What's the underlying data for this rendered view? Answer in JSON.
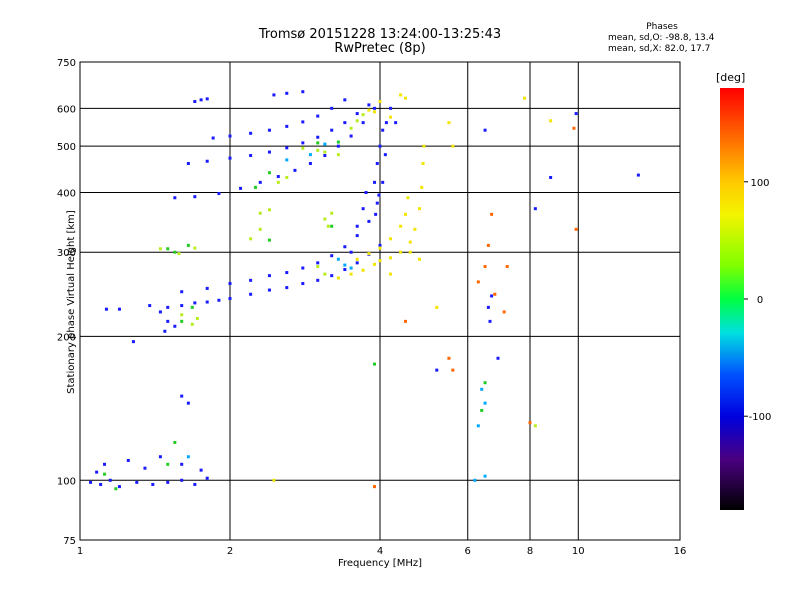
{
  "title_line1": "Tromsø 20151228 13:24:00-13:25:43",
  "title_line2": "RwPretec (8p)",
  "stats": {
    "heading": "Phases",
    "line_o": "mean, sd,O: -98.8, 13.4",
    "line_x": "mean, sd,X:  82.0, 17.7"
  },
  "colorbar": {
    "unit_label": "[deg]",
    "ticks": [
      "100",
      "0",
      "-100"
    ],
    "tick_values": [
      100,
      0,
      -100
    ],
    "range": [
      -180,
      180
    ],
    "colormap": "rainbow (black-purple-blue-cyan-green-yellow-orange-red)"
  },
  "chart_data": {
    "type": "scatter",
    "title": "Tromsø 20151228 13:24:00-13:25:43",
    "subtitle": "RwPretec (8p)",
    "xlabel": "Frequency [MHz]",
    "ylabel": "Stationary phase Virtual Height [km]",
    "x_scale": "log",
    "y_scale": "log",
    "xlim": [
      1,
      16
    ],
    "ylim": [
      75,
      750
    ],
    "x_ticks": [
      "1",
      "2",
      "4",
      "6",
      "8",
      "10",
      "16"
    ],
    "x_tick_values": [
      1,
      2,
      4,
      6,
      8,
      10,
      16
    ],
    "y_ticks": [
      "75",
      "100",
      "200",
      "300",
      "400",
      "500",
      "600",
      "750"
    ],
    "y_tick_values": [
      75,
      100,
      200,
      300,
      400,
      500,
      600,
      750
    ],
    "grid": true,
    "color_meaning": "phase in degrees",
    "series": [
      {
        "color": "#1a1aff",
        "phase": -100,
        "points": [
          [
            1.05,
            99
          ],
          [
            1.1,
            98
          ],
          [
            1.15,
            100
          ],
          [
            1.2,
            97
          ],
          [
            1.3,
            99
          ],
          [
            1.4,
            98
          ],
          [
            1.5,
            99
          ],
          [
            1.6,
            100
          ],
          [
            1.7,
            98
          ],
          [
            1.8,
            101
          ],
          [
            1.08,
            104
          ],
          [
            1.12,
            108
          ],
          [
            1.25,
            110
          ],
          [
            1.35,
            106
          ],
          [
            1.45,
            112
          ],
          [
            1.6,
            108
          ],
          [
            1.75,
            105
          ],
          [
            1.13,
            228
          ],
          [
            1.2,
            228
          ],
          [
            1.38,
            232
          ],
          [
            1.45,
            225
          ],
          [
            1.5,
            230
          ],
          [
            1.6,
            232
          ],
          [
            1.7,
            235
          ],
          [
            1.8,
            236
          ],
          [
            1.9,
            238
          ],
          [
            2.0,
            240
          ],
          [
            2.2,
            245
          ],
          [
            2.4,
            250
          ],
          [
            2.6,
            253
          ],
          [
            2.8,
            258
          ],
          [
            3.0,
            262
          ],
          [
            3.2,
            268
          ],
          [
            3.4,
            276
          ],
          [
            3.6,
            285
          ],
          [
            3.8,
            297
          ],
          [
            4.0,
            310
          ],
          [
            1.5,
            215
          ],
          [
            1.55,
            210
          ],
          [
            1.48,
            205
          ],
          [
            1.6,
            248
          ],
          [
            1.8,
            252
          ],
          [
            2.0,
            258
          ],
          [
            2.2,
            262
          ],
          [
            2.4,
            268
          ],
          [
            2.6,
            272
          ],
          [
            2.8,
            278
          ],
          [
            3.0,
            285
          ],
          [
            3.2,
            295
          ],
          [
            3.4,
            308
          ],
          [
            3.6,
            325
          ],
          [
            3.8,
            348
          ],
          [
            3.95,
            380
          ],
          [
            4.05,
            420
          ],
          [
            4.1,
            480
          ],
          [
            4.12,
            560
          ],
          [
            1.55,
            390
          ],
          [
            1.7,
            392
          ],
          [
            1.9,
            398
          ],
          [
            2.1,
            408
          ],
          [
            2.3,
            420
          ],
          [
            2.5,
            432
          ],
          [
            2.7,
            445
          ],
          [
            2.9,
            460
          ],
          [
            3.1,
            478
          ],
          [
            3.3,
            500
          ],
          [
            3.5,
            525
          ],
          [
            3.7,
            560
          ],
          [
            3.9,
            600
          ],
          [
            1.65,
            460
          ],
          [
            1.8,
            465
          ],
          [
            2.0,
            472
          ],
          [
            2.2,
            478
          ],
          [
            2.4,
            486
          ],
          [
            2.6,
            496
          ],
          [
            2.8,
            508
          ],
          [
            3.0,
            522
          ],
          [
            3.2,
            540
          ],
          [
            3.4,
            560
          ],
          [
            3.6,
            585
          ],
          [
            3.8,
            610
          ],
          [
            1.85,
            520
          ],
          [
            2.0,
            525
          ],
          [
            2.2,
            532
          ],
          [
            2.4,
            540
          ],
          [
            2.6,
            550
          ],
          [
            2.8,
            562
          ],
          [
            3.0,
            578
          ],
          [
            3.2,
            600
          ],
          [
            3.4,
            625
          ],
          [
            1.7,
            620
          ],
          [
            1.75,
            625
          ],
          [
            1.8,
            628
          ],
          [
            2.45,
            640
          ],
          [
            2.6,
            645
          ],
          [
            2.8,
            650
          ],
          [
            3.5,
            300
          ],
          [
            3.6,
            340
          ],
          [
            3.7,
            370
          ],
          [
            3.75,
            400
          ],
          [
            3.9,
            420
          ],
          [
            3.95,
            460
          ],
          [
            4.0,
            500
          ],
          [
            4.05,
            540
          ],
          [
            3.98,
            395
          ],
          [
            3.92,
            360
          ],
          [
            4.2,
            600
          ],
          [
            4.3,
            560
          ],
          [
            1.28,
            195
          ],
          [
            1.6,
            150
          ],
          [
            1.65,
            145
          ],
          [
            6.5,
            540
          ],
          [
            8.2,
            370
          ],
          [
            8.8,
            430
          ],
          [
            9.9,
            585
          ],
          [
            13.2,
            435
          ],
          [
            6.7,
            243
          ],
          [
            6.6,
            230
          ],
          [
            6.65,
            215
          ],
          [
            6.9,
            180
          ],
          [
            5.2,
            170
          ]
        ]
      },
      {
        "color": "#00a8ff",
        "phase": -60,
        "points": [
          [
            3.4,
            282
          ],
          [
            3.5,
            278
          ],
          [
            3.3,
            290
          ],
          [
            2.6,
            468
          ],
          [
            2.9,
            480
          ],
          [
            3.1,
            505
          ],
          [
            6.4,
            155
          ],
          [
            6.5,
            145
          ],
          [
            6.3,
            130
          ],
          [
            6.2,
            100
          ],
          [
            6.5,
            102
          ],
          [
            1.65,
            112
          ]
        ]
      },
      {
        "color": "#22cc22",
        "phase": 0,
        "points": [
          [
            1.12,
            103
          ],
          [
            1.18,
            96
          ],
          [
            1.55,
            120
          ],
          [
            1.5,
            108
          ],
          [
            2.25,
            410
          ],
          [
            2.4,
            440
          ],
          [
            3.3,
            510
          ],
          [
            3.0,
            508
          ],
          [
            3.2,
            340
          ],
          [
            2.4,
            318
          ],
          [
            1.68,
            230
          ],
          [
            1.6,
            215
          ],
          [
            1.55,
            300
          ],
          [
            1.5,
            305
          ],
          [
            1.65,
            310
          ],
          [
            3.9,
            175
          ],
          [
            6.4,
            140
          ],
          [
            6.5,
            160
          ]
        ]
      },
      {
        "color": "#b8ee20",
        "phase": 50,
        "points": [
          [
            1.6,
            222
          ],
          [
            1.72,
            218
          ],
          [
            1.68,
            212
          ],
          [
            1.45,
            305
          ],
          [
            1.58,
            298
          ],
          [
            1.7,
            306
          ],
          [
            2.3,
            335
          ],
          [
            2.2,
            320
          ],
          [
            2.3,
            362
          ],
          [
            2.4,
            368
          ],
          [
            3.1,
            352
          ],
          [
            3.15,
            340
          ],
          [
            3.2,
            362
          ],
          [
            2.8,
            495
          ],
          [
            3.0,
            490
          ],
          [
            3.1,
            486
          ],
          [
            3.3,
            480
          ],
          [
            3.5,
            545
          ],
          [
            3.6,
            565
          ],
          [
            3.7,
            582
          ],
          [
            2.6,
            430
          ],
          [
            2.5,
            420
          ],
          [
            3.0,
            280
          ],
          [
            3.1,
            270
          ],
          [
            8.2,
            130
          ]
        ]
      },
      {
        "color": "#f2e600",
        "phase": 100,
        "points": [
          [
            3.3,
            265
          ],
          [
            3.5,
            270
          ],
          [
            3.7,
            275
          ],
          [
            3.9,
            283
          ],
          [
            4.0,
            288
          ],
          [
            4.2,
            292
          ],
          [
            4.4,
            300
          ],
          [
            4.6,
            315
          ],
          [
            4.7,
            335
          ],
          [
            4.8,
            370
          ],
          [
            4.85,
            410
          ],
          [
            4.88,
            460
          ],
          [
            4.9,
            500
          ],
          [
            3.6,
            290
          ],
          [
            3.8,
            298
          ],
          [
            4.0,
            306
          ],
          [
            4.2,
            320
          ],
          [
            4.4,
            340
          ],
          [
            4.5,
            360
          ],
          [
            4.55,
            390
          ],
          [
            4.2,
            270
          ],
          [
            4.6,
            300
          ],
          [
            4.8,
            290
          ],
          [
            3.9,
            590
          ],
          [
            4.0,
            620
          ],
          [
            4.4,
            640
          ],
          [
            4.5,
            630
          ],
          [
            3.8,
            595
          ],
          [
            4.2,
            575
          ],
          [
            2.45,
            100
          ],
          [
            3.9,
            97
          ],
          [
            5.5,
            560
          ],
          [
            5.6,
            500
          ],
          [
            7.8,
            630
          ],
          [
            8.8,
            565
          ],
          [
            5.2,
            230
          ]
        ]
      },
      {
        "color": "#ff6600",
        "phase": 150,
        "points": [
          [
            6.6,
            310
          ],
          [
            6.7,
            360
          ],
          [
            6.5,
            280
          ],
          [
            6.3,
            260
          ],
          [
            7.1,
            225
          ],
          [
            7.2,
            280
          ],
          [
            9.9,
            335
          ],
          [
            9.8,
            545
          ],
          [
            6.8,
            245
          ],
          [
            4.5,
            215
          ],
          [
            3.9,
            97
          ],
          [
            5.5,
            180
          ],
          [
            5.6,
            170
          ],
          [
            8.0,
            132
          ]
        ]
      }
    ]
  }
}
